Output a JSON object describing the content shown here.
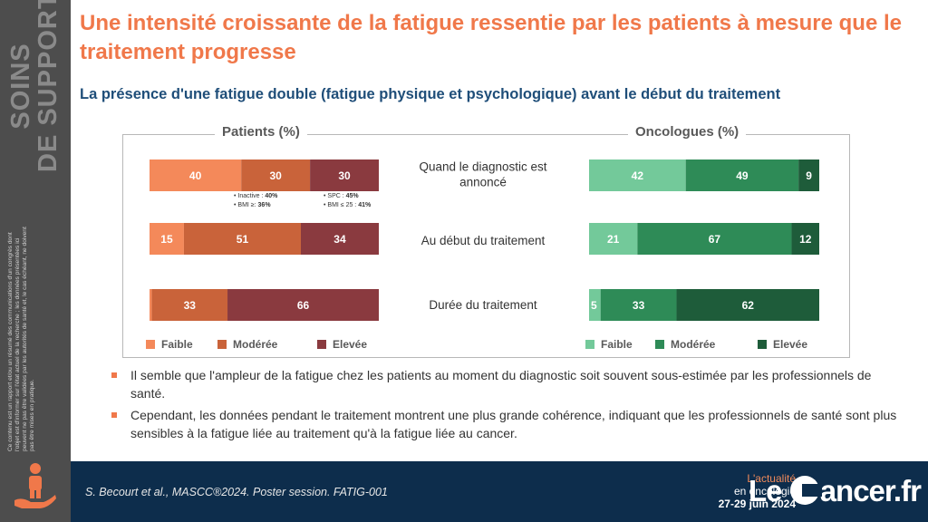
{
  "sidebar": {
    "title_line1": "SOINS",
    "title_line2": "DE SUPPORT",
    "disclaimer": "Ce contenu est un rapport et/ou un résumé des communications d'un congrès dont l'objet est d'informer sur l'état actuel de la recherche ; les données présentées ici peuvent ne pas être validées par les autorités de santé et, le cas échéant, ne doivent pas être mises en pratique."
  },
  "header": {
    "title": "Une intensité croissante de la fatigue ressentie par les patients à mesure que le traitement progresse",
    "subtitle": "La présence d'une fatigue double (fatigue physique et psychologique) avant le début du traitement"
  },
  "chart_data": {
    "type": "bar",
    "orientation": "horizontal",
    "stacked": true,
    "percent_stacked": true,
    "categories": [
      "Quand le diagnostic est annoncé",
      "Au début du traitement",
      "Durée du traitement"
    ],
    "legend": [
      "Faible",
      "Modérée",
      "Elevée"
    ],
    "legend_position": "bottom",
    "panels": [
      {
        "name": "Patients (%)",
        "colors": [
          "#f4895a",
          "#c9633a",
          "#8a3a3f"
        ],
        "series": [
          {
            "name": "Faible",
            "values": [
              40,
              15,
              1
            ]
          },
          {
            "name": "Modérée",
            "values": [
              30,
              51,
              33
            ]
          },
          {
            "name": "Elevée",
            "values": [
              30,
              34,
              66
            ]
          }
        ],
        "annotations": [
          {
            "category": "Quand le diagnostic est annoncé",
            "series": "Modérée",
            "lines": [
              [
                "• Inactive : ",
                "40%"
              ],
              [
                "• BMI ≥: ",
                "36%"
              ]
            ]
          },
          {
            "category": "Quand le diagnostic est annoncé",
            "series": "Elevée",
            "lines": [
              [
                "• SPC : ",
                "45%"
              ],
              [
                "• BMI ≤ 25 : ",
                "41%"
              ]
            ]
          }
        ]
      },
      {
        "name": "Oncologues (%)",
        "colors": [
          "#73c99a",
          "#2e8b57",
          "#1e5c3a"
        ],
        "series": [
          {
            "name": "Faible",
            "values": [
              42,
              21,
              5
            ]
          },
          {
            "name": "Modérée",
            "values": [
              49,
              67,
              33
            ]
          },
          {
            "name": "Elevée",
            "values": [
              9,
              12,
              62
            ]
          }
        ]
      }
    ]
  },
  "bullets": [
    "Il semble que l'ampleur de la fatigue chez les patients au moment du diagnostic soit souvent sous-estimée par les professionnels de santé.",
    "Cependant, les données pendant le traitement montrent une plus grande cohérence, indiquant que les professionnels de santé sont plus sensibles à la fatigue liée au traitement qu'à la fatigue liée au cancer."
  ],
  "footer": {
    "citation": "S. Becourt et al., MASCC®2024. Poster session. FATIG-001",
    "event_line1": "L'actualité",
    "event_line2": "en oncologie",
    "event_dates": "27-29 juin 2024",
    "logo_left": "Le ",
    "logo_right": "ancer.fr"
  },
  "colors": {
    "accent_orange": "#f0784a",
    "subtitle_blue": "#1f4e79",
    "footer_navy": "#0d2d4c",
    "sidebar_gray": "#4d4d4d"
  }
}
